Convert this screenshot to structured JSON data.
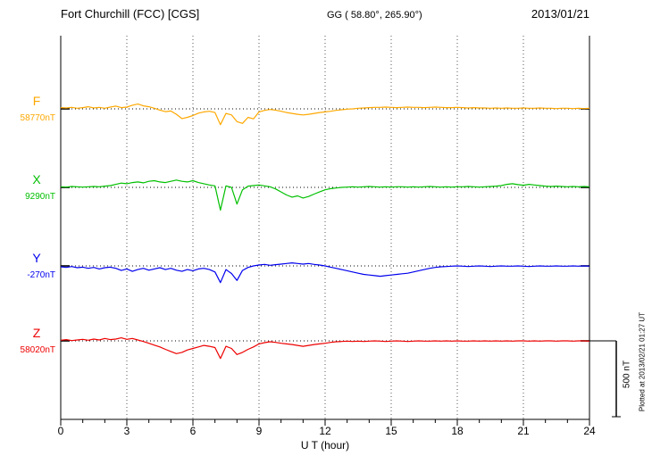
{
  "header": {
    "station": "Fort Churchill (FCC)  [CGS]",
    "coordinates": "GG ( 58.80°, 265.90°)",
    "date": "2013/01/21"
  },
  "scale_bar": {
    "label": "500 nT"
  },
  "plot_note": "Plotted at 2013/02/21 01:27 UT",
  "chart_data": {
    "type": "line",
    "title": "Fort Churchill (FCC)  [CGS] magnetogram 2013/01/21",
    "xlabel": "U T (hour)",
    "x_start": 0,
    "x_end": 24,
    "x_step": 0.25,
    "x_ticks": [
      0,
      3,
      6,
      9,
      12,
      15,
      18,
      21,
      24
    ],
    "unit": "nT deviation from component baseline",
    "scale_bar_nT": 500,
    "grid": "dotted vertical at 3h intervals, dotted horizontal baselines",
    "series": [
      {
        "name": "F",
        "baseline_label": "58770nT",
        "color": "#FFA800",
        "values": [
          8,
          6,
          10,
          4,
          8,
          14,
          6,
          10,
          4,
          12,
          18,
          8,
          12,
          24,
          32,
          20,
          14,
          4,
          -8,
          -18,
          -14,
          -36,
          -64,
          -56,
          -44,
          -28,
          -20,
          -16,
          -24,
          -104,
          -30,
          -40,
          -84,
          -96,
          -56,
          -66,
          -20,
          -10,
          -4,
          -8,
          -16,
          -24,
          -30,
          -36,
          -40,
          -36,
          -30,
          -24,
          -20,
          -16,
          -10,
          -6,
          -2,
          0,
          4,
          6,
          8,
          10,
          10,
          12,
          10,
          8,
          10,
          12,
          10,
          10,
          8,
          10,
          12,
          10,
          8,
          8,
          10,
          8,
          6,
          8,
          6,
          6,
          4,
          6,
          4,
          6,
          4,
          4,
          6,
          4,
          4,
          6,
          4,
          4,
          2,
          4,
          4,
          2,
          4,
          2,
          4
        ]
      },
      {
        "name": "X",
        "baseline_label": "9290nT",
        "color": "#00C000",
        "values": [
          4,
          2,
          6,
          4,
          2,
          4,
          6,
          4,
          8,
          12,
          20,
          28,
          24,
          32,
          36,
          30,
          40,
          44,
          36,
          32,
          40,
          48,
          40,
          36,
          44,
          32,
          24,
          16,
          10,
          -150,
          10,
          0,
          -110,
          -16,
          8,
          12,
          16,
          10,
          4,
          -10,
          -30,
          -50,
          -64,
          -56,
          -70,
          -60,
          -44,
          -30,
          -16,
          -8,
          -4,
          0,
          2,
          4,
          2,
          4,
          6,
          4,
          2,
          4,
          2,
          4,
          4,
          2,
          4,
          2,
          4,
          6,
          4,
          2,
          4,
          2,
          4,
          4,
          6,
          4,
          2,
          4,
          6,
          8,
          12,
          20,
          24,
          18,
          14,
          20,
          16,
          12,
          8,
          6,
          8,
          6,
          4,
          6,
          4,
          6,
          4
        ]
      },
      {
        "name": "Y",
        "baseline_label": "-270nT",
        "color": "#0000EE",
        "values": [
          -6,
          -10,
          -4,
          -12,
          -8,
          -16,
          -10,
          -20,
          -12,
          -8,
          -16,
          -30,
          -20,
          -36,
          -24,
          -16,
          -28,
          -20,
          -12,
          -24,
          -16,
          -28,
          -36,
          -24,
          -32,
          -20,
          -16,
          -24,
          -40,
          -110,
          -24,
          -50,
          -96,
          -30,
          -10,
          0,
          6,
          10,
          4,
          8,
          12,
          16,
          20,
          16,
          12,
          16,
          10,
          6,
          0,
          -8,
          -16,
          -24,
          -32,
          -40,
          -48,
          -56,
          -60,
          -64,
          -68,
          -64,
          -60,
          -56,
          -52,
          -48,
          -40,
          -32,
          -24,
          -16,
          -10,
          -6,
          -4,
          -2,
          0,
          -2,
          -4,
          -2,
          0,
          -2,
          -4,
          -2,
          0,
          -2,
          -2,
          0,
          -2,
          -4,
          -2,
          0,
          -2,
          -2,
          0,
          -2,
          -2,
          0,
          -2,
          0,
          -2
        ]
      },
      {
        "name": "Z",
        "baseline_label": "58020nT",
        "color": "#EE0000",
        "values": [
          4,
          8,
          2,
          6,
          10,
          4,
          12,
          6,
          16,
          8,
          12,
          20,
          10,
          16,
          6,
          -4,
          -16,
          -28,
          -40,
          -56,
          -70,
          -84,
          -76,
          -60,
          -50,
          -40,
          -30,
          -36,
          -44,
          -116,
          -36,
          -50,
          -90,
          -76,
          -56,
          -40,
          -20,
          -12,
          -6,
          -10,
          -16,
          -20,
          -24,
          -30,
          -36,
          -30,
          -24,
          -20,
          -16,
          -10,
          -6,
          -4,
          -2,
          -4,
          -2,
          -4,
          -2,
          0,
          -2,
          -4,
          -2,
          0,
          -2,
          -4,
          -2,
          0,
          -2,
          -2,
          0,
          -2,
          0,
          -2,
          0,
          -2,
          -2,
          0,
          -2,
          0,
          -2,
          0,
          -2,
          0,
          -2,
          0,
          0,
          -2,
          0,
          -2,
          0,
          0,
          -2,
          0,
          0,
          -2,
          0,
          0,
          -2
        ]
      }
    ]
  }
}
